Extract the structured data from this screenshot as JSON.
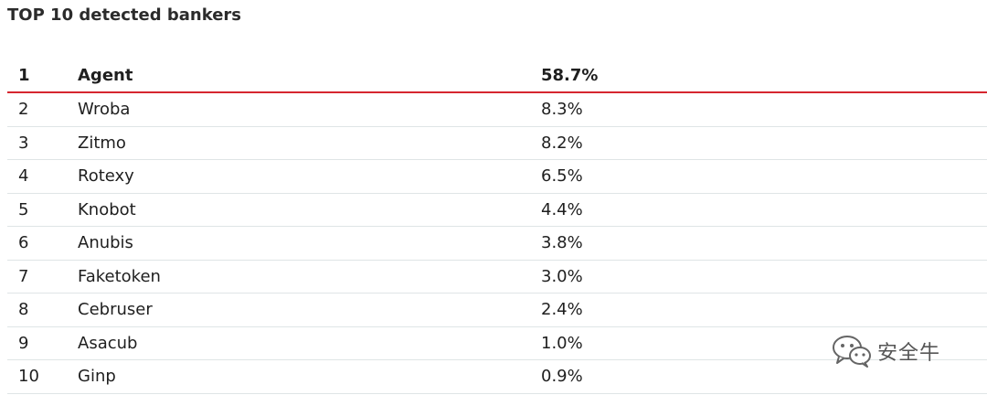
{
  "title": "TOP 10 detected bankers",
  "rows": [
    {
      "rank": "1",
      "name": "Agent",
      "percent": "58.7%"
    },
    {
      "rank": "2",
      "name": "Wroba",
      "percent": "8.3%"
    },
    {
      "rank": "3",
      "name": "Zitmo",
      "percent": "8.2%"
    },
    {
      "rank": "4",
      "name": "Rotexy",
      "percent": "6.5%"
    },
    {
      "rank": "5",
      "name": "Knobot",
      "percent": "4.4%"
    },
    {
      "rank": "6",
      "name": "Anubis",
      "percent": "3.8%"
    },
    {
      "rank": "7",
      "name": "Faketoken",
      "percent": "3.0%"
    },
    {
      "rank": "8",
      "name": "Cebruser",
      "percent": "2.4%"
    },
    {
      "rank": "9",
      "name": "Asacub",
      "percent": "1.0%"
    },
    {
      "rank": "10",
      "name": "Ginp",
      "percent": "0.9%"
    }
  ],
  "watermark": {
    "text": "安全牛",
    "icon": "wechat-icon"
  },
  "colors": {
    "accent_line": "#d6262f",
    "row_divider": "#dfe5e6",
    "text": "#1f1f1f"
  }
}
